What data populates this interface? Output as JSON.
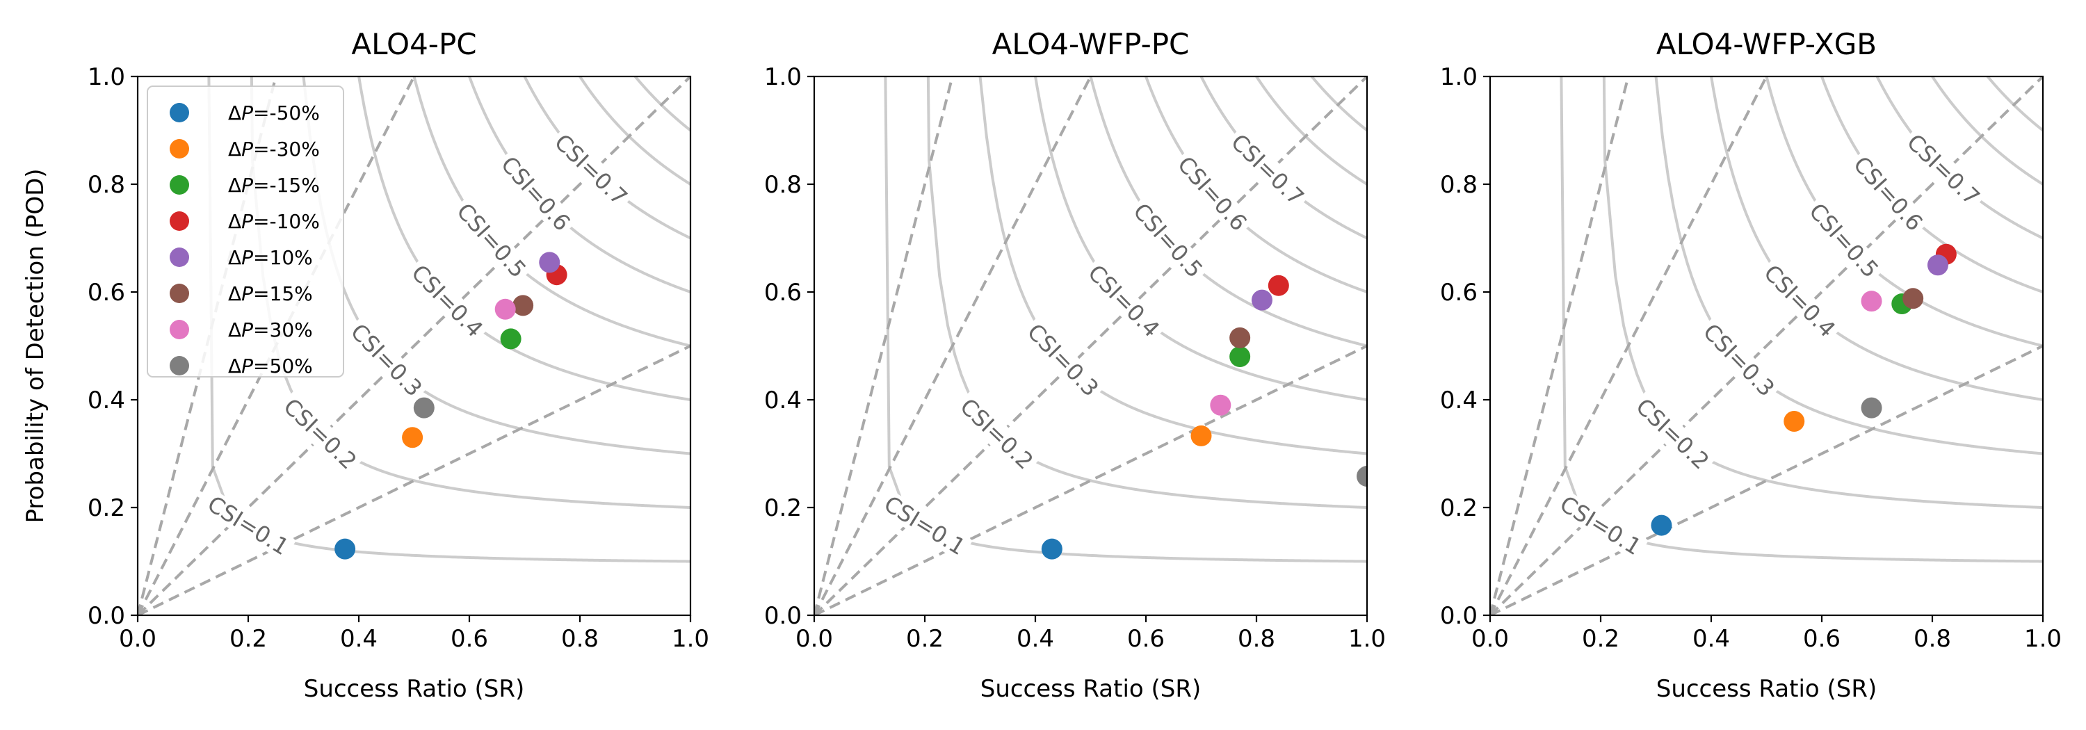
{
  "chart_data": {
    "panels": [
      {
        "title": "ALO4-PC",
        "type": "scatter",
        "xlabel": "Success Ratio (SR)",
        "ylabel": "Probability of Detection (POD)",
        "xlim": [
          0,
          1
        ],
        "ylim": [
          0,
          1
        ],
        "points": [
          {
            "label": "ΔP=-50%",
            "x": 0.375,
            "y": 0.123
          },
          {
            "label": "ΔP=-30%",
            "x": 0.497,
            "y": 0.33
          },
          {
            "label": "ΔP=-15%",
            "x": 0.675,
            "y": 0.513
          },
          {
            "label": "ΔP=-10%",
            "x": 0.758,
            "y": 0.632
          },
          {
            "label": "ΔP=10%",
            "x": 0.745,
            "y": 0.655
          },
          {
            "label": "ΔP=15%",
            "x": 0.697,
            "y": 0.575
          },
          {
            "label": "ΔP=30%",
            "x": 0.665,
            "y": 0.568
          },
          {
            "label": "ΔP=50%",
            "x": 0.518,
            "y": 0.385
          }
        ]
      },
      {
        "title": "ALO4-WFP-PC",
        "type": "scatter",
        "xlabel": "Success Ratio (SR)",
        "ylabel": "",
        "xlim": [
          0,
          1
        ],
        "ylim": [
          0,
          1
        ],
        "points": [
          {
            "label": "ΔP=-50%",
            "x": 0.43,
            "y": 0.123
          },
          {
            "label": "ΔP=-30%",
            "x": 0.7,
            "y": 0.333
          },
          {
            "label": "ΔP=-15%",
            "x": 0.77,
            "y": 0.48
          },
          {
            "label": "ΔP=-10%",
            "x": 0.84,
            "y": 0.612
          },
          {
            "label": "ΔP=10%",
            "x": 0.81,
            "y": 0.585
          },
          {
            "label": "ΔP=15%",
            "x": 0.77,
            "y": 0.515
          },
          {
            "label": "ΔP=30%",
            "x": 0.735,
            "y": 0.39
          },
          {
            "label": "ΔP=50%",
            "x": 1.0,
            "y": 0.258
          }
        ]
      },
      {
        "title": "ALO4-WFP-XGB",
        "type": "scatter",
        "xlabel": "Success Ratio (SR)",
        "ylabel": "",
        "xlim": [
          0,
          1
        ],
        "ylim": [
          0,
          1
        ],
        "points": [
          {
            "label": "ΔP=-50%",
            "x": 0.31,
            "y": 0.167
          },
          {
            "label": "ΔP=-30%",
            "x": 0.55,
            "y": 0.36
          },
          {
            "label": "ΔP=-15%",
            "x": 0.745,
            "y": 0.578
          },
          {
            "label": "ΔP=-10%",
            "x": 0.825,
            "y": 0.67
          },
          {
            "label": "ΔP=10%",
            "x": 0.81,
            "y": 0.65
          },
          {
            "label": "ΔP=15%",
            "x": 0.765,
            "y": 0.588
          },
          {
            "label": "ΔP=30%",
            "x": 0.69,
            "y": 0.583
          },
          {
            "label": "ΔP=50%",
            "x": 0.69,
            "y": 0.385
          }
        ]
      }
    ],
    "series": [
      {
        "name": "ΔP=-50%",
        "delta": "-50%",
        "color": "#1f77b4"
      },
      {
        "name": "ΔP=-30%",
        "delta": "-30%",
        "color": "#ff7f0e"
      },
      {
        "name": "ΔP=-15%",
        "delta": "-15%",
        "color": "#2ca02c"
      },
      {
        "name": "ΔP=-10%",
        "delta": "-10%",
        "color": "#d62728"
      },
      {
        "name": "ΔP=10%",
        "delta": "10%",
        "color": "#9467bd"
      },
      {
        "name": "ΔP=15%",
        "delta": "15%",
        "color": "#8c564b"
      },
      {
        "name": "ΔP=30%",
        "delta": "30%",
        "color": "#e377c2"
      },
      {
        "name": "ΔP=50%",
        "delta": "50%",
        "color": "#7f7f7f"
      }
    ],
    "legend_location": "top-left of first panel",
    "tick_labels": [
      "0.0",
      "0.2",
      "0.4",
      "0.6",
      "0.8",
      "1.0"
    ],
    "csi_levels": [
      0.1,
      0.2,
      0.3,
      0.4,
      0.5,
      0.6,
      0.7,
      0.8,
      0.9
    ],
    "csi_labels": [
      "CSI=0.1",
      "CSI=0.2",
      "CSI=0.3",
      "CSI=0.4",
      "CSI=0.5",
      "CSI=0.6",
      "CSI=0.7"
    ],
    "bias_lines": [
      0.5,
      1,
      2,
      4
    ]
  }
}
